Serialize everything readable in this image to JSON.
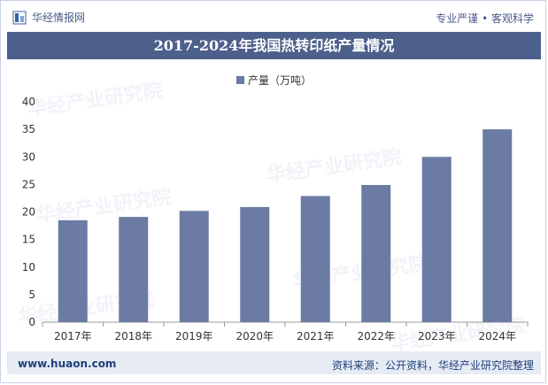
{
  "header": {
    "brand_name": "华经情报网",
    "tagline": "专业严谨 • 客观科学"
  },
  "chart_data": {
    "type": "bar",
    "title": "2017-2024年我国热转印纸产量情况",
    "categories": [
      "2017年",
      "2018年",
      "2019年",
      "2020年",
      "2021年",
      "2022年",
      "2023年",
      "2024年"
    ],
    "series": [
      {
        "name": "产量（万吨）",
        "values": [
          18.5,
          19.1,
          20.2,
          20.9,
          22.9,
          24.9,
          30.0,
          35.0
        ]
      }
    ],
    "ylim": [
      0,
      40
    ],
    "yticks": [
      0,
      5,
      10,
      15,
      20,
      25,
      30,
      35,
      40
    ],
    "xlabel": "",
    "ylabel": "",
    "bar_color": "#6b7ba3",
    "legend_position": "top-center"
  },
  "footer": {
    "url": "www.huaon.com",
    "source": "资料来源：公开资料，华经产业研究院整理"
  },
  "colors": {
    "title_bar": "#4d5f8b",
    "bar": "#6b7ba3",
    "footer_bar": "#e6ebf4",
    "text_dark": "#1f3f7a"
  }
}
